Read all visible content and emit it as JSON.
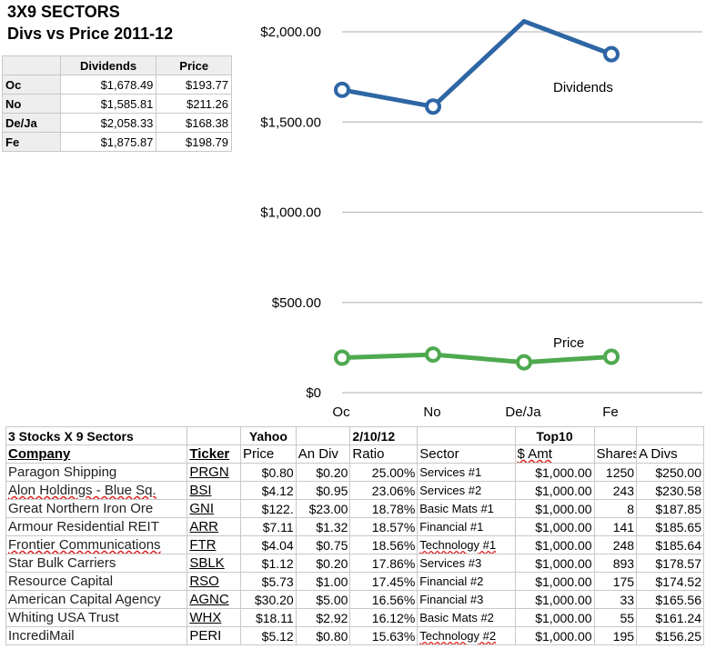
{
  "header": {
    "title": "3X9 SECTORS",
    "subtitle": "Divs vs Price 2011-12"
  },
  "summary_table": {
    "columns": [
      "Dividends",
      "Price"
    ],
    "rows": [
      {
        "label": "Oc",
        "dividends": "$1,678.49",
        "price": "$193.77"
      },
      {
        "label": "No",
        "dividends": "$1,585.81",
        "price": "$211.26"
      },
      {
        "label": "De/Ja",
        "dividends": "$2,058.33",
        "price": "$168.38"
      },
      {
        "label": "Fe",
        "dividends": "$1,875.87",
        "price": "$198.79"
      }
    ]
  },
  "chart_data": {
    "type": "line",
    "categories": [
      "Oc",
      "No",
      "De/Ja",
      "Fe"
    ],
    "series": [
      {
        "name": "Dividends",
        "values": [
          1678.49,
          1585.81,
          2058.33,
          1875.87
        ],
        "color": "#2e66a5"
      },
      {
        "name": "Price",
        "values": [
          193.77,
          211.26,
          168.38,
          198.79
        ],
        "color": "#4ea94f"
      }
    ],
    "ylim": [
      0,
      2000
    ],
    "yticks": [
      0,
      500,
      1000,
      1500,
      2000
    ],
    "ytick_labels": [
      "$0",
      "$500.00",
      "$1,000.00",
      "$1,500.00",
      "$2,000.00"
    ],
    "grid": true,
    "legend": "inline labels"
  },
  "stocks_table": {
    "header1": [
      "3 Stocks X 9 Sectors",
      "",
      "Yahoo",
      "",
      "2/10/12",
      "",
      "Top10",
      "",
      ""
    ],
    "header2": [
      "Company",
      "Ticker",
      "Price",
      "An Div",
      "Ratio",
      "Sector",
      "$ Amt",
      "Shares",
      "A Divs"
    ],
    "rows": [
      {
        "company": "Paragon Shipping",
        "ticker": "PRGN",
        "price": "$0.80",
        "andiv": "$0.20",
        "ratio": "25.00%",
        "sector": "Services #1",
        "amt": "$1,000.00",
        "shares": "1250",
        "adivs": "$250.00"
      },
      {
        "company": "Alon Holdings - Blue Sq.",
        "ticker": "BSI",
        "price": "$4.12",
        "andiv": "$0.95",
        "ratio": "23.06%",
        "sector": "Services #2",
        "amt": "$1,000.00",
        "shares": "243",
        "adivs": "$230.58"
      },
      {
        "company": "Great Northern Iron Ore",
        "ticker": "GNI",
        "price": "$122.",
        "andiv": "$23.00",
        "ratio": "18.78%",
        "sector": "Basic Mats #1",
        "amt": "$1,000.00",
        "shares": "8",
        "adivs": "$187.85"
      },
      {
        "company": "Armour Residential REIT",
        "ticker": "ARR",
        "price": "$7.11",
        "andiv": "$1.32",
        "ratio": "18.57%",
        "sector": "Financial #1",
        "amt": "$1,000.00",
        "shares": "141",
        "adivs": "$185.65"
      },
      {
        "company": "Frontier Communications",
        "ticker": "FTR",
        "price": "$4.04",
        "andiv": "$0.75",
        "ratio": "18.56%",
        "sector": "Technology #1",
        "amt": "$1,000.00",
        "shares": "248",
        "adivs": "$185.64"
      },
      {
        "company": "Star Bulk Carriers",
        "ticker": "SBLK",
        "price": "$1.12",
        "andiv": "$0.20",
        "ratio": "17.86%",
        "sector": "Services #3",
        "amt": "$1,000.00",
        "shares": "893",
        "adivs": "$178.57"
      },
      {
        "company": "Resource Capital",
        "ticker": "RSO",
        "price": "$5.73",
        "andiv": "$1.00",
        "ratio": "17.45%",
        "sector": "Financial #2",
        "amt": "$1,000.00",
        "shares": "175",
        "adivs": "$174.52"
      },
      {
        "company": "American Capital Agency",
        "ticker": "AGNC",
        "price": "$30.20",
        "andiv": "$5.00",
        "ratio": "16.56%",
        "sector": "Financial #3",
        "amt": "$1,000.00",
        "shares": "33",
        "adivs": "$165.56"
      },
      {
        "company": "Whiting USA Trust",
        "ticker": "WHX",
        "price": "$18.11",
        "andiv": "$2.92",
        "ratio": "16.12%",
        "sector": "Basic Mats #2",
        "amt": "$1,000.00",
        "shares": "55",
        "adivs": "$161.24"
      },
      {
        "company": "IncrediMail",
        "ticker": "PERI",
        "price": "$5.12",
        "andiv": "$0.80",
        "ratio": "15.63%",
        "sector": "Technology #2",
        "amt": "$1,000.00",
        "shares": "195",
        "adivs": "$156.25"
      }
    ]
  }
}
